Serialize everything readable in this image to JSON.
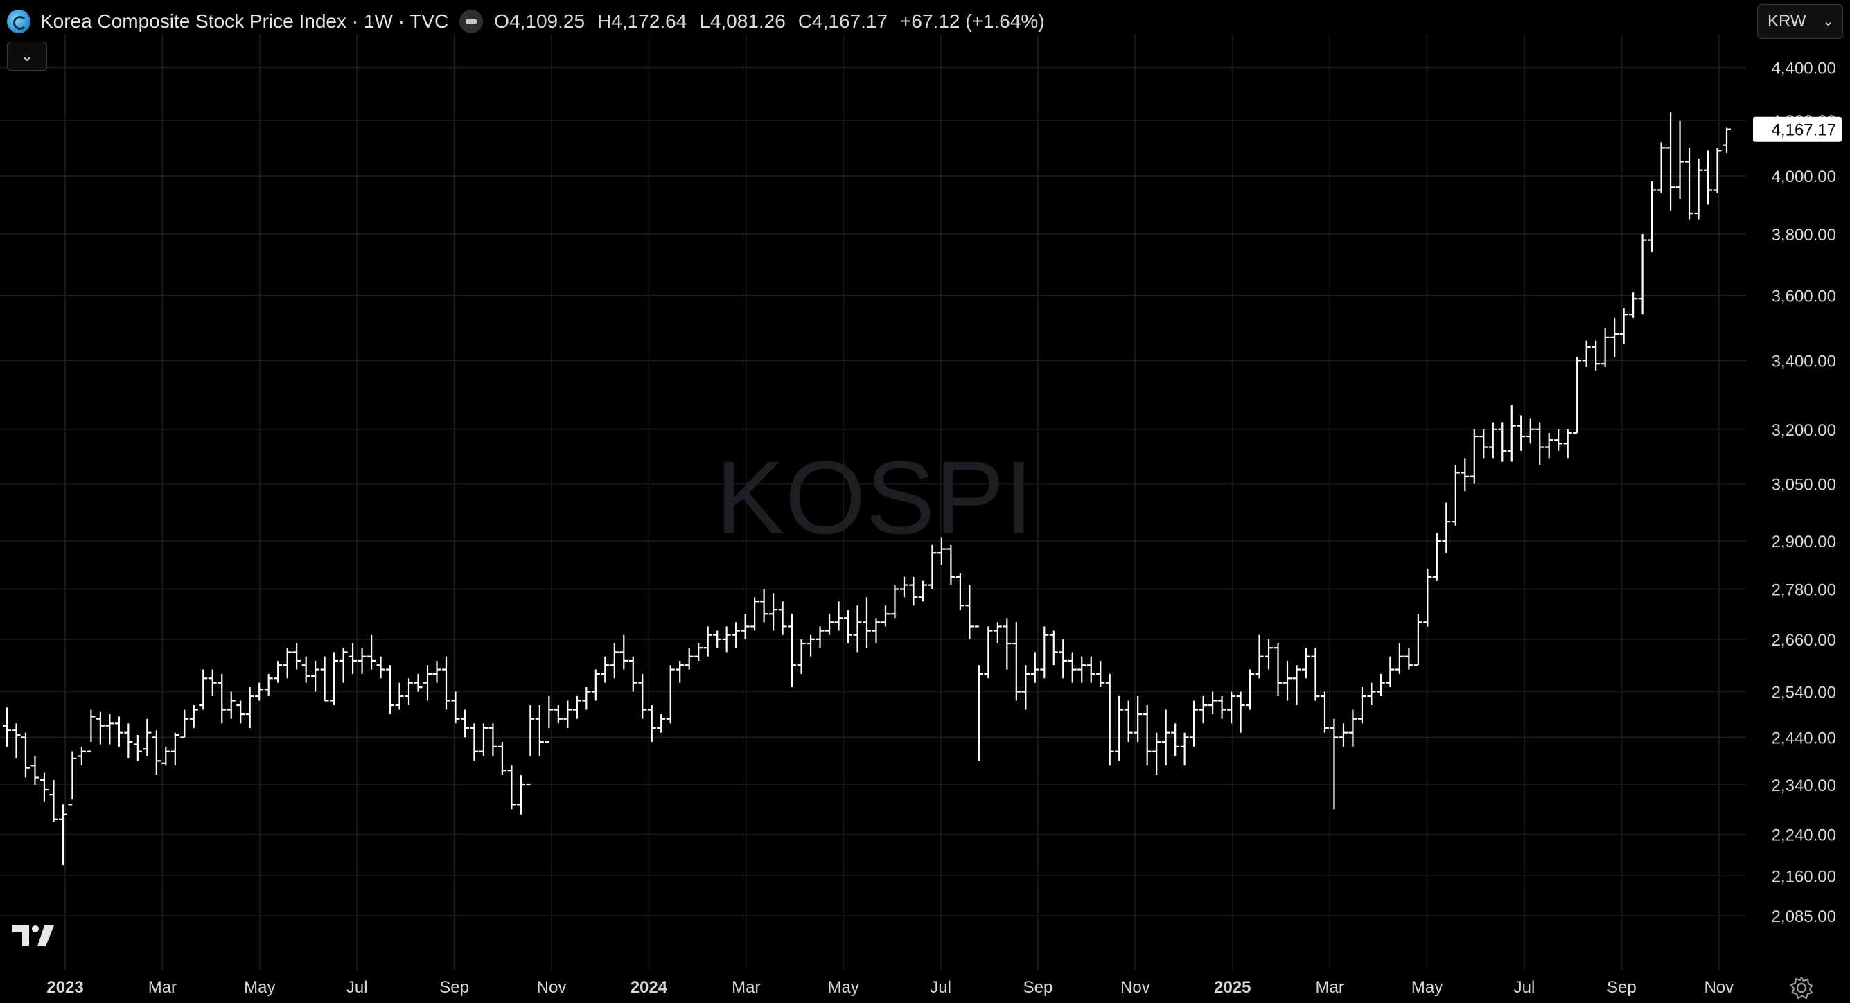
{
  "header": {
    "title": "Korea Composite Stock Price Index · 1W · TVC",
    "open": "O4,109.25",
    "high": "H4,172.64",
    "low": "L4,081.26",
    "close": "C4,167.17",
    "change": "+67.12 (+1.64%)"
  },
  "currency": "KRW",
  "icons": {
    "collapse": "chevron-down-icon",
    "currency": "chevron-down-icon",
    "logo": "tradingview-logo-icon",
    "settings": "gear-icon",
    "symbol": "index-symbol-icon",
    "status": "market-status-icon"
  },
  "chart_data": {
    "type": "ohlc",
    "watermark": "KOSPI",
    "last_price_label": "4,167.17",
    "y_tick_labels": [
      "4,400.00",
      "4,200.00",
      "4,000.00",
      "3,800.00",
      "3,600.00",
      "3,400.00",
      "3,200.00",
      "3,050.00",
      "2,900.00",
      "2,780.00",
      "2,660.00",
      "2,540.00",
      "2,440.00",
      "2,340.00",
      "2,240.00",
      "2,160.00",
      "2,085.00"
    ],
    "y_ticks": [
      4400,
      4200,
      4000,
      3800,
      3600,
      3400,
      3200,
      3050,
      2900,
      2780,
      2660,
      2540,
      2440,
      2340,
      2240,
      2160,
      2085
    ],
    "y_scale": "log",
    "ylim": [
      2040,
      4480
    ],
    "x_tick_labels": [
      {
        "label": "2023",
        "bold": true,
        "date": "2023-01"
      },
      {
        "label": "Mar",
        "bold": false,
        "date": "2023-03"
      },
      {
        "label": "May",
        "bold": false,
        "date": "2023-05"
      },
      {
        "label": "Jul",
        "bold": false,
        "date": "2023-07"
      },
      {
        "label": "Sep",
        "bold": false,
        "date": "2023-09"
      },
      {
        "label": "Nov",
        "bold": false,
        "date": "2023-11"
      },
      {
        "label": "2024",
        "bold": true,
        "date": "2024-01"
      },
      {
        "label": "Mar",
        "bold": false,
        "date": "2024-03"
      },
      {
        "label": "May",
        "bold": false,
        "date": "2024-05"
      },
      {
        "label": "Jul",
        "bold": false,
        "date": "2024-07"
      },
      {
        "label": "Sep",
        "bold": false,
        "date": "2024-09"
      },
      {
        "label": "Nov",
        "bold": false,
        "date": "2024-11"
      },
      {
        "label": "2025",
        "bold": true,
        "date": "2025-01"
      },
      {
        "label": "Mar",
        "bold": false,
        "date": "2025-03"
      },
      {
        "label": "May",
        "bold": false,
        "date": "2025-05"
      },
      {
        "label": "Jul",
        "bold": false,
        "date": "2025-07"
      },
      {
        "label": "Sep",
        "bold": false,
        "date": "2025-09"
      },
      {
        "label": "Nov",
        "bold": false,
        "date": "2025-11"
      }
    ],
    "grid": true,
    "colors": {
      "background": "#000000",
      "bars": "#ffffff",
      "grid": "#1f1f1f",
      "text": "#d9d9d9"
    },
    "bars": [
      [
        2465,
        2505,
        2420,
        2455
      ],
      [
        2455,
        2470,
        2395,
        2445
      ],
      [
        2440,
        2450,
        2355,
        2375
      ],
      [
        2380,
        2400,
        2340,
        2355
      ],
      [
        2350,
        2365,
        2305,
        2330
      ],
      [
        2320,
        2350,
        2265,
        2270
      ],
      [
        2270,
        2300,
        2180,
        2280
      ],
      [
        2300,
        2410,
        2310,
        2395
      ],
      [
        2400,
        2420,
        2380,
        2410
      ],
      [
        2410,
        2500,
        2430,
        2485
      ],
      [
        2480,
        2495,
        2425,
        2465
      ],
      [
        2465,
        2490,
        2425,
        2470
      ],
      [
        2470,
        2485,
        2420,
        2450
      ],
      [
        2450,
        2470,
        2395,
        2430
      ],
      [
        2425,
        2445,
        2390,
        2410
      ],
      [
        2415,
        2480,
        2400,
        2450
      ],
      [
        2440,
        2455,
        2360,
        2390
      ],
      [
        2385,
        2420,
        2380,
        2410
      ],
      [
        2410,
        2450,
        2380,
        2445
      ],
      [
        2440,
        2500,
        2440,
        2480
      ],
      [
        2480,
        2510,
        2460,
        2500
      ],
      [
        2510,
        2590,
        2500,
        2570
      ],
      [
        2570,
        2590,
        2530,
        2560
      ],
      [
        2560,
        2580,
        2470,
        2500
      ],
      [
        2500,
        2540,
        2480,
        2520
      ],
      [
        2510,
        2520,
        2470,
        2490
      ],
      [
        2490,
        2550,
        2460,
        2530
      ],
      [
        2530,
        2560,
        2520,
        2545
      ],
      [
        2545,
        2580,
        2530,
        2570
      ],
      [
        2570,
        2610,
        2560,
        2600
      ],
      [
        2600,
        2640,
        2570,
        2630
      ],
      [
        2630,
        2650,
        2590,
        2610
      ],
      [
        2600,
        2620,
        2560,
        2575
      ],
      [
        2575,
        2610,
        2540,
        2590
      ],
      [
        2590,
        2620,
        2520,
        2520
      ],
      [
        2520,
        2630,
        2510,
        2610
      ],
      [
        2610,
        2640,
        2560,
        2630
      ],
      [
        2620,
        2650,
        2580,
        2610
      ],
      [
        2610,
        2640,
        2580,
        2620
      ],
      [
        2620,
        2670,
        2590,
        2610
      ],
      [
        2600,
        2620,
        2570,
        2590
      ],
      [
        2590,
        2600,
        2490,
        2510
      ],
      [
        2510,
        2560,
        2500,
        2530
      ],
      [
        2530,
        2570,
        2510,
        2560
      ],
      [
        2560,
        2580,
        2540,
        2550
      ],
      [
        2560,
        2600,
        2520,
        2580
      ],
      [
        2580,
        2610,
        2560,
        2590
      ],
      [
        2590,
        2620,
        2500,
        2520
      ],
      [
        2520,
        2540,
        2470,
        2480
      ],
      [
        2480,
        2500,
        2440,
        2460
      ],
      [
        2460,
        2470,
        2390,
        2410
      ],
      [
        2410,
        2470,
        2400,
        2460
      ],
      [
        2460,
        2470,
        2400,
        2420
      ],
      [
        2420,
        2430,
        2360,
        2370
      ],
      [
        2370,
        2380,
        2290,
        2300
      ],
      [
        2300,
        2360,
        2280,
        2340
      ],
      [
        2340,
        2510,
        2400,
        2480
      ],
      [
        2480,
        2510,
        2400,
        2430
      ],
      [
        2430,
        2530,
        2460,
        2500
      ],
      [
        2500,
        2510,
        2470,
        2480
      ],
      [
        2480,
        2520,
        2460,
        2500
      ],
      [
        2500,
        2530,
        2480,
        2520
      ],
      [
        2520,
        2550,
        2500,
        2540
      ],
      [
        2540,
        2590,
        2520,
        2580
      ],
      [
        2580,
        2620,
        2560,
        2600
      ],
      [
        2600,
        2650,
        2570,
        2630
      ],
      [
        2630,
        2670,
        2590,
        2610
      ],
      [
        2610,
        2620,
        2540,
        2560
      ],
      [
        2560,
        2580,
        2480,
        2500
      ],
      [
        2500,
        2510,
        2430,
        2460
      ],
      [
        2460,
        2490,
        2450,
        2480
      ],
      [
        2480,
        2600,
        2470,
        2590
      ],
      [
        2590,
        2610,
        2560,
        2600
      ],
      [
        2600,
        2640,
        2590,
        2620
      ],
      [
        2620,
        2650,
        2610,
        2640
      ],
      [
        2640,
        2690,
        2620,
        2670
      ],
      [
        2670,
        2680,
        2640,
        2660
      ],
      [
        2660,
        2690,
        2630,
        2670
      ],
      [
        2670,
        2700,
        2640,
        2680
      ],
      [
        2680,
        2720,
        2660,
        2690
      ],
      [
        2690,
        2760,
        2680,
        2750
      ],
      [
        2750,
        2780,
        2700,
        2720
      ],
      [
        2720,
        2770,
        2680,
        2730
      ],
      [
        2730,
        2750,
        2670,
        2690
      ],
      [
        2690,
        2720,
        2550,
        2600
      ],
      [
        2600,
        2660,
        2580,
        2650
      ],
      [
        2650,
        2670,
        2620,
        2660
      ],
      [
        2660,
        2690,
        2640,
        2680
      ],
      [
        2680,
        2720,
        2670,
        2700
      ],
      [
        2700,
        2750,
        2680,
        2710
      ],
      [
        2710,
        2730,
        2650,
        2670
      ],
      [
        2670,
        2740,
        2630,
        2700
      ],
      [
        2700,
        2760,
        2640,
        2680
      ],
      [
        2680,
        2710,
        2650,
        2700
      ],
      [
        2700,
        2740,
        2690,
        2720
      ],
      [
        2720,
        2790,
        2710,
        2780
      ],
      [
        2780,
        2810,
        2760,
        2790
      ],
      [
        2790,
        2810,
        2740,
        2760
      ],
      [
        2760,
        2800,
        2750,
        2790
      ],
      [
        2790,
        2890,
        2780,
        2870
      ],
      [
        2870,
        2910,
        2840,
        2880
      ],
      [
        2880,
        2890,
        2790,
        2810
      ],
      [
        2810,
        2820,
        2730,
        2740
      ],
      [
        2740,
        2790,
        2660,
        2690
      ],
      [
        2690,
        2600,
        2390,
        2580
      ],
      [
        2580,
        2690,
        2570,
        2680
      ],
      [
        2680,
        2700,
        2650,
        2690
      ],
      [
        2690,
        2710,
        2590,
        2650
      ],
      [
        2650,
        2700,
        2520,
        2540
      ],
      [
        2540,
        2600,
        2500,
        2580
      ],
      [
        2580,
        2630,
        2560,
        2590
      ],
      [
        2590,
        2690,
        2570,
        2670
      ],
      [
        2670,
        2680,
        2600,
        2630
      ],
      [
        2630,
        2660,
        2570,
        2610
      ],
      [
        2610,
        2630,
        2560,
        2590
      ],
      [
        2590,
        2620,
        2560,
        2600
      ],
      [
        2600,
        2620,
        2560,
        2580
      ],
      [
        2580,
        2610,
        2550,
        2560
      ],
      [
        2560,
        2580,
        2380,
        2410
      ],
      [
        2410,
        2530,
        2390,
        2500
      ],
      [
        2500,
        2520,
        2430,
        2450
      ],
      [
        2450,
        2530,
        2430,
        2490
      ],
      [
        2490,
        2510,
        2380,
        2410
      ],
      [
        2410,
        2450,
        2360,
        2430
      ],
      [
        2430,
        2500,
        2380,
        2450
      ],
      [
        2450,
        2470,
        2400,
        2420
      ],
      [
        2420,
        2450,
        2380,
        2440
      ],
      [
        2440,
        2520,
        2420,
        2500
      ],
      [
        2500,
        2530,
        2470,
        2510
      ],
      [
        2510,
        2540,
        2490,
        2520
      ],
      [
        2520,
        2530,
        2480,
        2500
      ],
      [
        2500,
        2540,
        2470,
        2530
      ],
      [
        2530,
        2540,
        2450,
        2510
      ],
      [
        2510,
        2590,
        2500,
        2580
      ],
      [
        2580,
        2670,
        2570,
        2620
      ],
      [
        2620,
        2660,
        2590,
        2640
      ],
      [
        2640,
        2650,
        2530,
        2560
      ],
      [
        2560,
        2610,
        2520,
        2570
      ],
      [
        2570,
        2600,
        2510,
        2590
      ],
      [
        2590,
        2640,
        2570,
        2620
      ],
      [
        2620,
        2640,
        2520,
        2530
      ],
      [
        2530,
        2540,
        2450,
        2460
      ],
      [
        2460,
        2480,
        2290,
        2440
      ],
      [
        2440,
        2470,
        2420,
        2450
      ],
      [
        2450,
        2500,
        2420,
        2480
      ],
      [
        2480,
        2550,
        2470,
        2530
      ],
      [
        2530,
        2560,
        2510,
        2540
      ],
      [
        2540,
        2580,
        2530,
        2560
      ],
      [
        2560,
        2620,
        2550,
        2590
      ],
      [
        2590,
        2650,
        2580,
        2620
      ],
      [
        2620,
        2640,
        2590,
        2600
      ],
      [
        2600,
        2720,
        2600,
        2700
      ],
      [
        2700,
        2830,
        2690,
        2810
      ],
      [
        2810,
        2920,
        2800,
        2900
      ],
      [
        2900,
        3000,
        2870,
        2950
      ],
      [
        2950,
        3100,
        2940,
        3080
      ],
      [
        3080,
        3120,
        3030,
        3070
      ],
      [
        3070,
        3200,
        3050,
        3180
      ],
      [
        3180,
        3200,
        3120,
        3150
      ],
      [
        3150,
        3220,
        3120,
        3200
      ],
      [
        3200,
        3220,
        3110,
        3140
      ],
      [
        3140,
        3270,
        3110,
        3210
      ],
      [
        3210,
        3240,
        3140,
        3180
      ],
      [
        3180,
        3230,
        3160,
        3200
      ],
      [
        3200,
        3220,
        3100,
        3150
      ],
      [
        3150,
        3190,
        3120,
        3170
      ],
      [
        3170,
        3200,
        3140,
        3160
      ],
      [
        3160,
        3200,
        3120,
        3190
      ],
      [
        3190,
        3410,
        3190,
        3400
      ],
      [
        3400,
        3460,
        3380,
        3440
      ],
      [
        3440,
        3460,
        3370,
        3390
      ],
      [
        3390,
        3500,
        3380,
        3470
      ],
      [
        3470,
        3530,
        3410,
        3480
      ],
      [
        3480,
        3560,
        3450,
        3540
      ],
      [
        3540,
        3610,
        3530,
        3590
      ],
      [
        3590,
        3800,
        3540,
        3780
      ],
      [
        3780,
        3980,
        3740,
        3950
      ],
      [
        3950,
        4120,
        3940,
        4100
      ],
      [
        4100,
        4230,
        3880,
        3960
      ],
      [
        3960,
        4200,
        3920,
        4050
      ],
      [
        4050,
        4100,
        3850,
        3870
      ],
      [
        3870,
        4060,
        3850,
        4020
      ],
      [
        4020,
        4090,
        3900,
        3950
      ],
      [
        3950,
        4100,
        3940,
        4090
      ],
      [
        4109.25,
        4172.64,
        4081.26,
        4167.17
      ]
    ]
  }
}
